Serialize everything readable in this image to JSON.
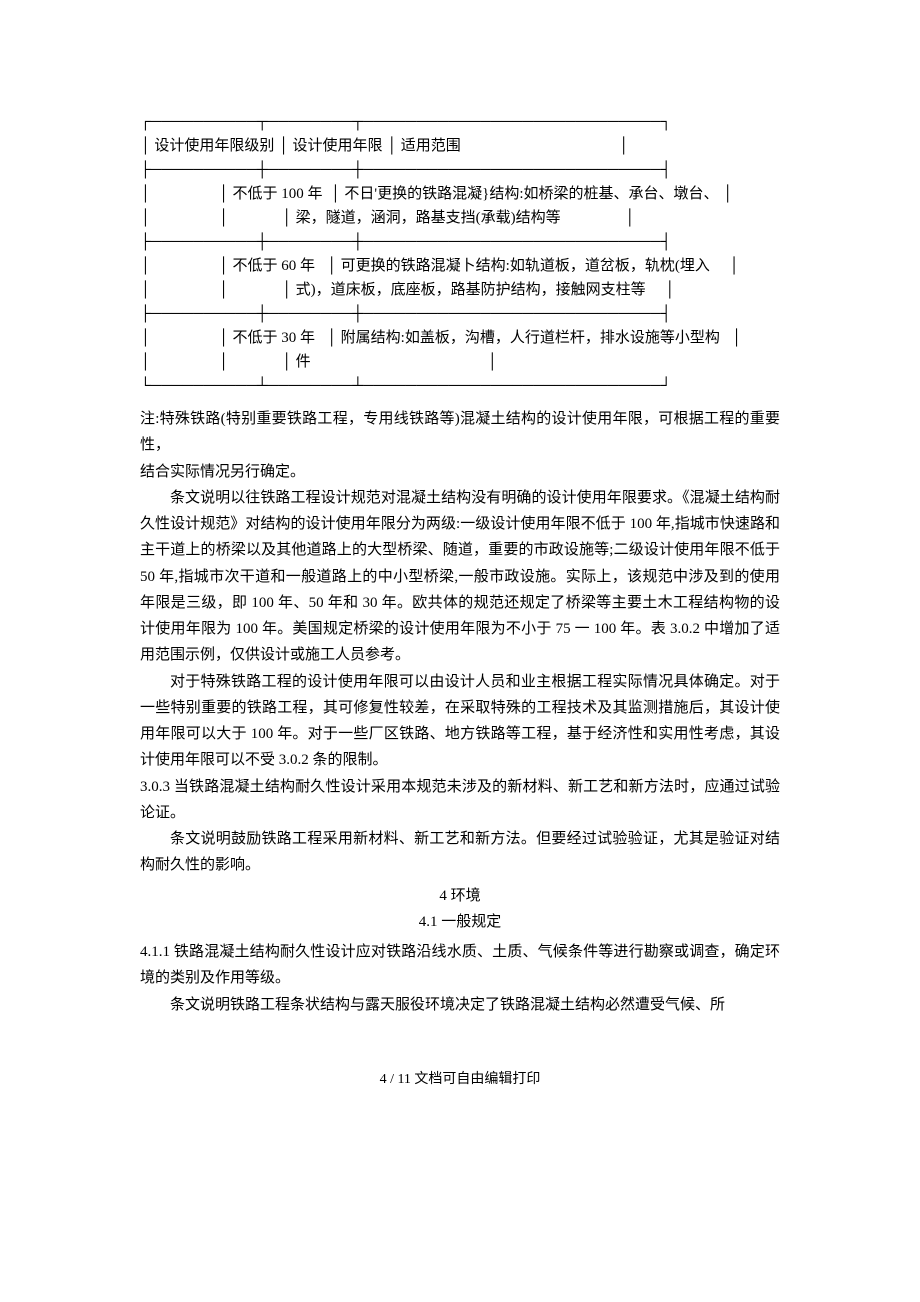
{
  "table": {
    "header": {
      "col1": "设计使用年限级别",
      "col2": "设计使用年限",
      "col3": "适用范围"
    },
    "rows": [
      {
        "life": "不低于 100 年",
        "scope_a": "不日'更换的铁路混凝}结构:如桥梁的桩基、承台、墩台、",
        "scope_b": "梁，隧道，涵洞，路基支挡(承载)结构等"
      },
      {
        "life": "不低于 60 年",
        "scope_a": "可更换的铁路混凝卜结构:如轨道板，道岔板，轨枕(埋入",
        "scope_b": "式)，道床板，底座板，路基防护结构，接触网支柱等"
      },
      {
        "life": "不低于 30 年",
        "scope_a": "附属结构:如盖板，沟槽，人行道栏杆，排水设施等小型构",
        "scope_b": "件"
      }
    ]
  },
  "note_line1": "注:特殊铁路(特别重要铁路工程，专用线铁路等)混凝土结构的设计使用年限，可根据工程的重要性，",
  "note_line2": "结合实际情况另行确定。",
  "p1": "条文说明以往铁路工程设计规范对混凝土结构没有明确的设计使用年限要求。《混凝土结构耐久性设计规范》对结构的设计使用年限分为两级:一级设计使用年限不低于 100 年,指城市快速路和主干道上的桥梁以及其他道路上的大型桥梁、随道，重要的市政设施等;二级设计使用年限不低于 50 年,指城市次干道和一般道路上的中小型桥梁,一般市政设施。实际上，该规范中涉及到的使用年限是三级，即 100 年、50 年和 30 年。欧共体的规范还规定了桥梁等主要土木工程结构物的设计使用年限为 100 年。美国规定桥梁的设计使用年限为不小于 75 一 100 年。表 3.0.2 中增加了适用范围示例，仅供设计或施工人员参考。",
  "p2": "对于特殊铁路工程的设计使用年限可以由设计人员和业主根据工程实际情况具体确定。对于一些特别重要的铁路工程，其可修复性较差，在采取特殊的工程技术及其监测措施后，其设计使用年限可以大于 100 年。对于一些厂区铁路、地方铁路等工程，基于经济性和实用性考虑，其设计使用年限可以不受 3.0.2 条的限制。",
  "p3": "3.0.3 当铁路混凝土结构耐久性设计采用本规范未涉及的新材料、新工艺和新方法时，应通过试验论证。",
  "p4": "条文说明鼓励铁路工程采用新材料、新工艺和新方法。但要经过试验验证，尤其是验证对结构耐久性的影响。",
  "section4": "4 环境",
  "section4_1": "4.1 一般规定",
  "p5": "4.1.1 铁路混凝土结构耐久性设计应对铁路沿线水质、土质、气候条件等进行勘察或调查，确定环境的类别及作用等级。",
  "p6": "条文说明铁路工程条状结构与露天服役环境决定了铁路混凝土结构必然遭受气候、所",
  "footer": "4 / 11 文档可自由编辑打印"
}
